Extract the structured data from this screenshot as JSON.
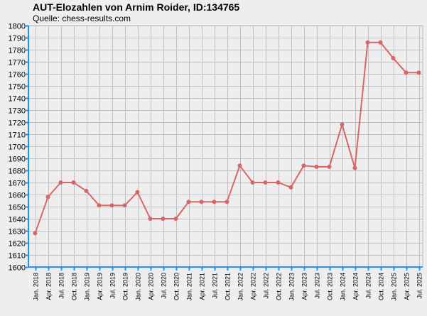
{
  "chart_data": {
    "type": "line",
    "title": "AUT-Elozahlen von Arnim Roider, ID:134765",
    "subtitle": "Quelle: chess-results.com",
    "ylim": [
      1600,
      1800
    ],
    "ytick_step": 10,
    "grid": true,
    "categories": [
      "Jan. 2018",
      "Apr. 2018",
      "Jul. 2018",
      "Oct. 2018",
      "Jan. 2019",
      "Apr. 2019",
      "Jul. 2019",
      "Oct. 2019",
      "Jan. 2020",
      "Apr. 2020",
      "Jul. 2020",
      "Oct. 2020",
      "Jan. 2021",
      "Apr. 2021",
      "Jul. 2021",
      "Oct. 2021",
      "Jan. 2022",
      "Apr. 2022",
      "Jul. 2022",
      "Oct. 2022",
      "Jan. 2023",
      "Apr. 2023",
      "Jul. 2023",
      "Oct. 2023",
      "Jan. 2024",
      "Apr. 2024",
      "Jul. 2024",
      "Oct. 2024",
      "Jan. 2025",
      "Apr. 2025",
      "Jul. 2025"
    ],
    "series": [
      {
        "color": "#d96666",
        "values": [
          1628,
          1658,
          1670,
          1670,
          1663,
          1651,
          1651,
          1651,
          1662,
          1640,
          1640,
          1640,
          1654,
          1654,
          1654,
          1654,
          1684,
          1670,
          1670,
          1670,
          1666,
          1684,
          1683,
          1683,
          1718,
          1682,
          1786,
          1786,
          1773,
          1761,
          1761
        ]
      }
    ],
    "colors": {
      "axis": "#1e90ff",
      "grid": "#c0c0c0",
      "background": "#eeeeee"
    }
  }
}
